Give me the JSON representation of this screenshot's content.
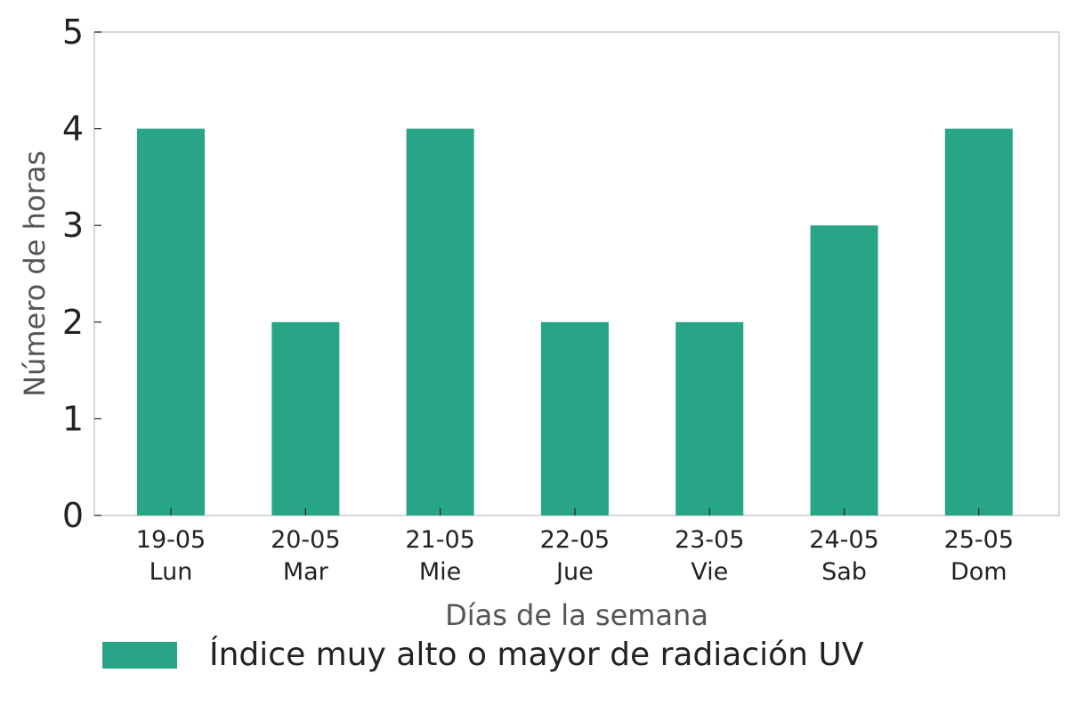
{
  "chart_data": {
    "type": "bar",
    "categories": [
      [
        "19-05",
        "Lun"
      ],
      [
        "20-05",
        "Mar"
      ],
      [
        "21-05",
        "Mie"
      ],
      [
        "22-05",
        "Jue"
      ],
      [
        "23-05",
        "Vie"
      ],
      [
        "24-05",
        "Sab"
      ],
      [
        "25-05",
        "Dom"
      ]
    ],
    "series": [
      {
        "name": "Índice muy alto o mayor de radiación UV",
        "values": [
          4,
          2,
          4,
          2,
          2,
          3,
          4
        ],
        "color": "#27a586"
      }
    ],
    "title": "",
    "xlabel": "Días de la semana",
    "ylabel": "Número de horas",
    "ylim": [
      0,
      5
    ],
    "yticks": [
      "0",
      "1",
      "2",
      "3",
      "4",
      "5"
    ],
    "grid": false,
    "legend_position": "bottom-left",
    "colors": {
      "axis": "#cccccc",
      "tick_text": "#222222",
      "label_text": "#555555"
    }
  }
}
